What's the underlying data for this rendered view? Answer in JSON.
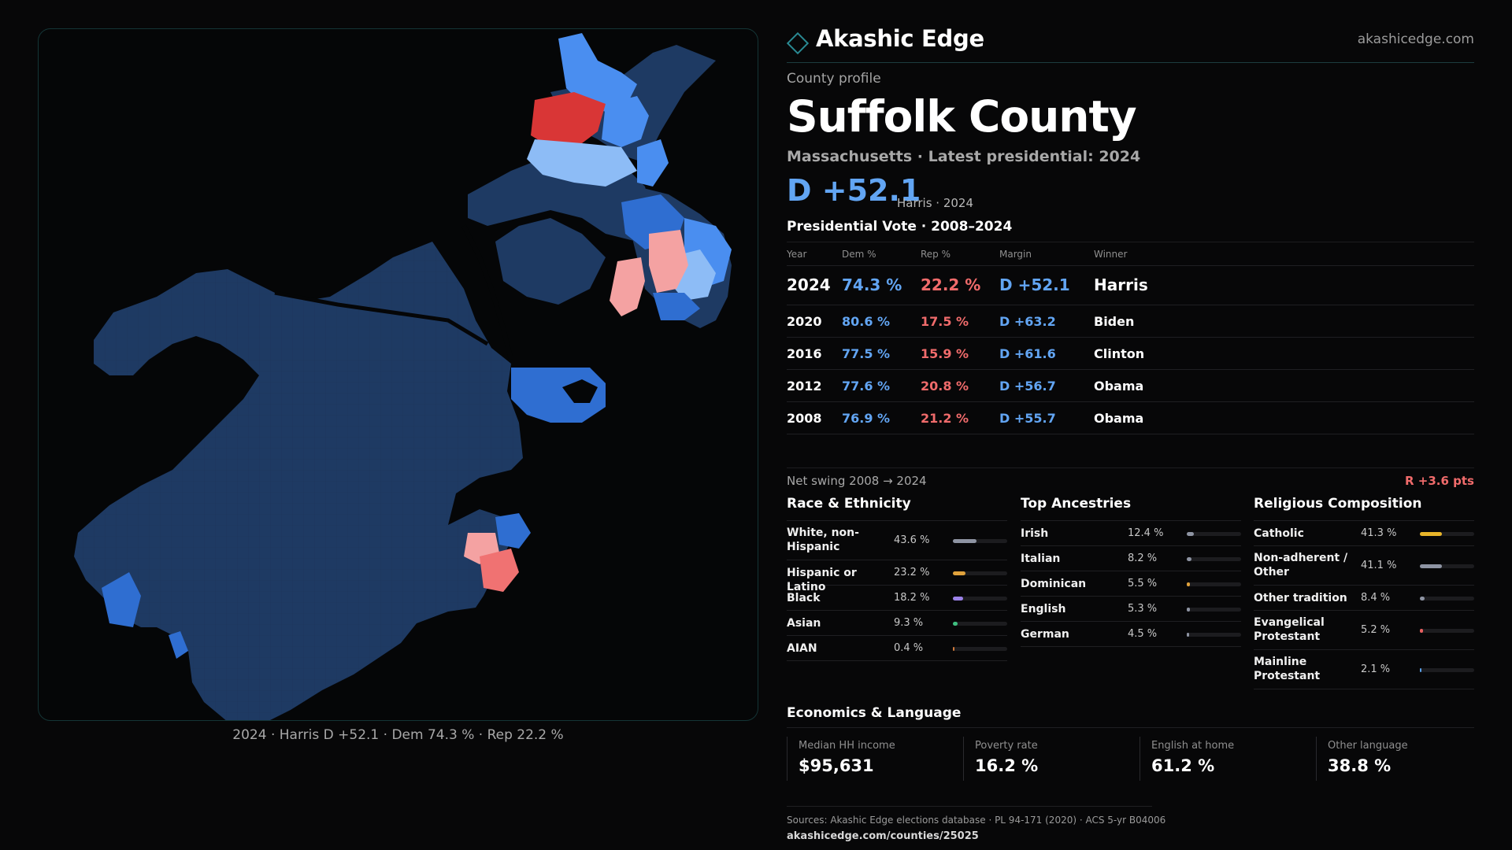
{
  "map": {
    "caption": "2024 · Harris D +52.1 · Dem 74.3 % · Rep 22.2 %",
    "colors": {
      "strong_dem": "#1e3a63",
      "mid_dem": "#2f6ed1",
      "light_dem": "#4a8ef0",
      "pale_dem": "#8dbcf6",
      "pale_rep": "#f4a2a2",
      "mid_rep": "#f07272",
      "strong_rep": "#d93636"
    }
  },
  "header": {
    "brand": "Akashic Edge",
    "site": "akashicedge.com"
  },
  "profile": {
    "kicker": "County profile",
    "title": "Suffolk County",
    "subtitle": "Massachusetts · Latest presidential: 2024",
    "margin": "D +52.1",
    "margin_note": "Harris · 2024"
  },
  "vote": {
    "title": "Presidential Vote · 2008–2024",
    "headers": {
      "year": "Year",
      "dem": "Dem %",
      "rep": "Rep %",
      "margin": "Margin",
      "winner": "Winner"
    },
    "rows": [
      {
        "year": "2024",
        "dem": "74.3 %",
        "rep": "22.2 %",
        "margin": "D +52.1",
        "winner": "Harris"
      },
      {
        "year": "2020",
        "dem": "80.6 %",
        "rep": "17.5 %",
        "margin": "D +63.2",
        "winner": "Biden"
      },
      {
        "year": "2016",
        "dem": "77.5 %",
        "rep": "15.9 %",
        "margin": "D +61.6",
        "winner": "Clinton"
      },
      {
        "year": "2012",
        "dem": "77.6 %",
        "rep": "20.8 %",
        "margin": "D +56.7",
        "winner": "Obama"
      },
      {
        "year": "2008",
        "dem": "76.9 %",
        "rep": "21.2 %",
        "margin": "D +55.7",
        "winner": "Obama"
      }
    ],
    "swing_label": "Net swing 2008 → 2024",
    "swing_value": "R +3.6 pts"
  },
  "race": {
    "title": "Race & Ethnicity",
    "items": [
      {
        "label": "White, non-Hispanic",
        "value": "43.6 %",
        "pct": 43.6,
        "color": "#8e94a3"
      },
      {
        "label": "Hispanic or Latino",
        "value": "23.2 %",
        "pct": 23.2,
        "color": "#e0a23c"
      },
      {
        "label": "Black",
        "value": "18.2 %",
        "pct": 18.2,
        "color": "#9b82e8"
      },
      {
        "label": "Asian",
        "value": "9.3 %",
        "pct": 9.3,
        "color": "#3fbf80"
      },
      {
        "label": "AIAN",
        "value": "0.4 %",
        "pct": 0.4,
        "color": "#d07a3c"
      }
    ]
  },
  "ancestry": {
    "title": "Top Ancestries",
    "items": [
      {
        "label": "Irish",
        "value": "12.4 %",
        "pct": 12.4,
        "color": "#8e94a3"
      },
      {
        "label": "Italian",
        "value": "8.2 %",
        "pct": 8.2,
        "color": "#8e94a3"
      },
      {
        "label": "Dominican",
        "value": "5.5 %",
        "pct": 5.5,
        "color": "#e0a23c"
      },
      {
        "label": "English",
        "value": "5.3 %",
        "pct": 5.3,
        "color": "#8e94a3"
      },
      {
        "label": "German",
        "value": "4.5 %",
        "pct": 4.5,
        "color": "#8e94a3"
      }
    ]
  },
  "religion": {
    "title": "Religious Composition",
    "items": [
      {
        "label": "Catholic",
        "value": "41.3 %",
        "pct": 41.3,
        "color": "#e8b52a"
      },
      {
        "label": "Non-adherent / Other",
        "value": "41.1 %",
        "pct": 41.1,
        "color": "#8e94a3"
      },
      {
        "label": "Other tradition",
        "value": "8.4 %",
        "pct": 8.4,
        "color": "#8e94a3"
      },
      {
        "label": "Evangelical Protestant",
        "value": "5.2 %",
        "pct": 5.2,
        "color": "#e86060"
      },
      {
        "label": "Mainline Protestant",
        "value": "2.1 %",
        "pct": 2.1,
        "color": "#5aa0e8"
      }
    ]
  },
  "economics": {
    "title": "Economics & Language",
    "cards": [
      {
        "label": "Median HH income",
        "value": "$95,631"
      },
      {
        "label": "Poverty rate",
        "value": "16.2 %"
      },
      {
        "label": "English at home",
        "value": "61.2 %"
      },
      {
        "label": "Other language",
        "value": "38.8 %"
      }
    ]
  },
  "footer": {
    "sources": "Sources: Akashic Edge elections database · PL 94-171 (2020) · ACS 5-yr B04006",
    "url": "akashicedge.com/counties/25025"
  }
}
